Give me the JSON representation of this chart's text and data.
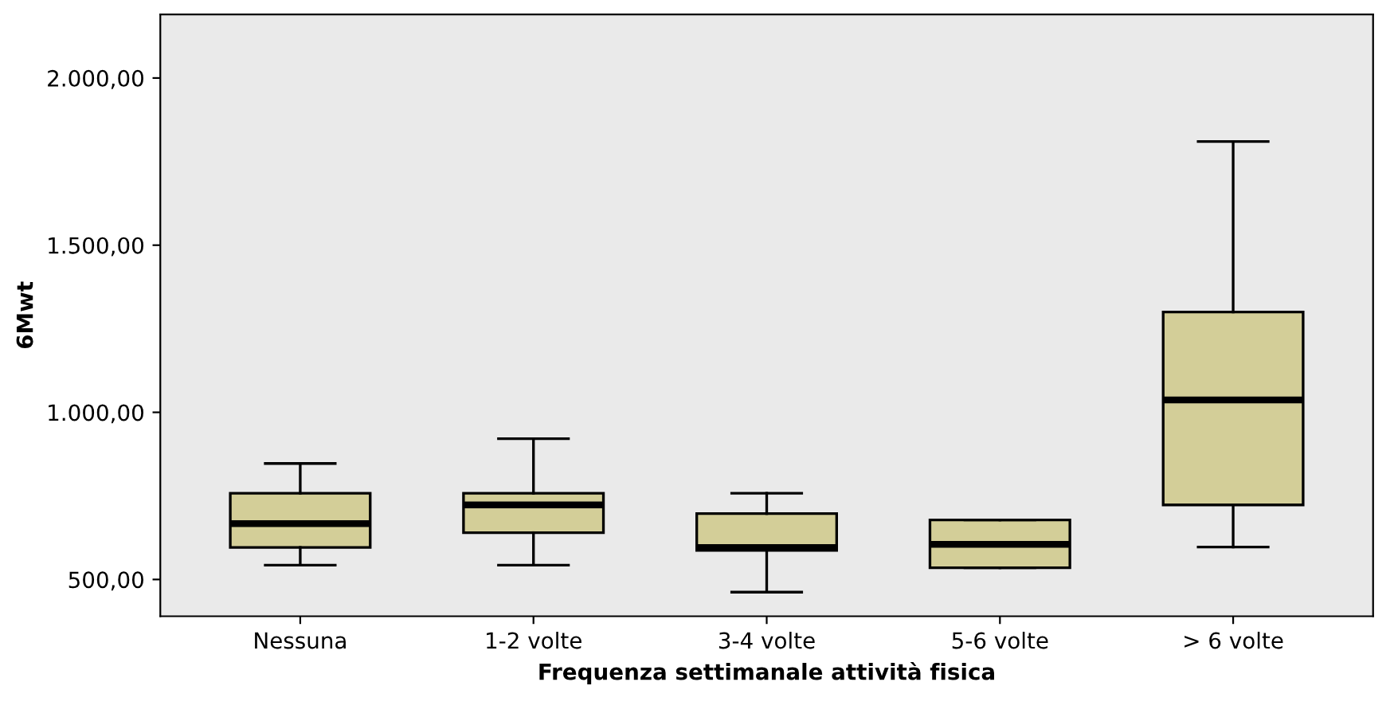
{
  "chart_data": {
    "type": "box",
    "xlabel": "Frequenza settimanale attività fisica",
    "ylabel": "6Mwt",
    "categories": [
      "Nessuna",
      "1-2 volte",
      "3-4 volte",
      "5-6 volte",
      "> 6 volte"
    ],
    "color": "#d3ce98",
    "boxes": [
      {
        "low": 543,
        "q1": 596,
        "median": 667,
        "q3": 758,
        "high": 847
      },
      {
        "low": 543,
        "q1": 640,
        "median": 723,
        "q3": 758,
        "high": 921
      },
      {
        "low": 462,
        "q1": 587,
        "median": 596,
        "q3": 697,
        "high": 758
      },
      {
        "low": 535,
        "q1": 535,
        "median": 605,
        "q3": 678,
        "high": 678
      },
      {
        "low": 597,
        "q1": 723,
        "median": 1037,
        "q3": 1300,
        "high": 1810
      }
    ],
    "ylim": [
      390,
      2190
    ],
    "yticks": [
      {
        "value": 500,
        "label": "500,00"
      },
      {
        "value": 1000,
        "label": "1.000,00"
      },
      {
        "value": 1500,
        "label": "1.500,00"
      },
      {
        "value": 2000,
        "label": "2.000,00"
      }
    ],
    "grid": false
  }
}
